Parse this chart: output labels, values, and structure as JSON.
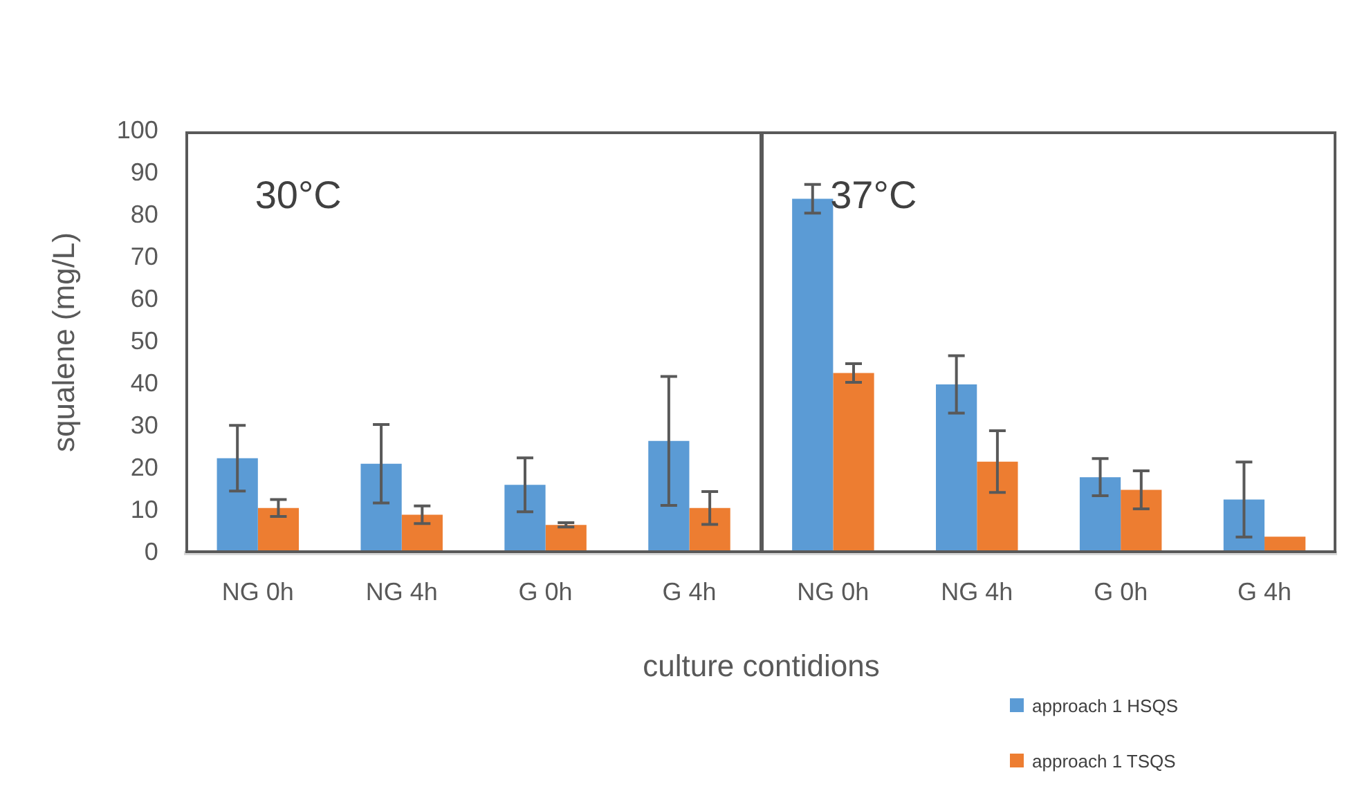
{
  "chart_data": {
    "type": "bar",
    "xlabel": "culture contidions",
    "ylabel": "squalene (mg/L)",
    "categories": [
      "NG 0h",
      "NG 4h",
      "G 0h",
      "G 4h",
      "NG 0h",
      "NG 4h",
      "G 0h",
      "G 4h"
    ],
    "series": [
      {
        "name": "approach 1 HSQS",
        "color": "#5b9bd5",
        "values": [
          22.5,
          21.2,
          16.2,
          26.6,
          84.0,
          40.0,
          18.0,
          12.7
        ],
        "errors": [
          7.8,
          9.3,
          6.4,
          15.3,
          3.4,
          6.8,
          4.4,
          8.9
        ]
      },
      {
        "name": "approach 1 TSQS",
        "color": "#ed7d31",
        "values": [
          10.7,
          9.1,
          6.7,
          10.7,
          42.7,
          21.7,
          15.0,
          3.9
        ],
        "errors": [
          2.0,
          2.1,
          0.5,
          3.9,
          2.2,
          7.3,
          4.5,
          null
        ]
      }
    ],
    "ylim": [
      0,
      100
    ],
    "yticks": [
      0,
      10,
      20,
      30,
      40,
      50,
      60,
      70,
      80,
      90,
      100
    ],
    "grid": false,
    "legend": "bottom right",
    "annotations": [
      "30°C",
      "37°C"
    ]
  }
}
